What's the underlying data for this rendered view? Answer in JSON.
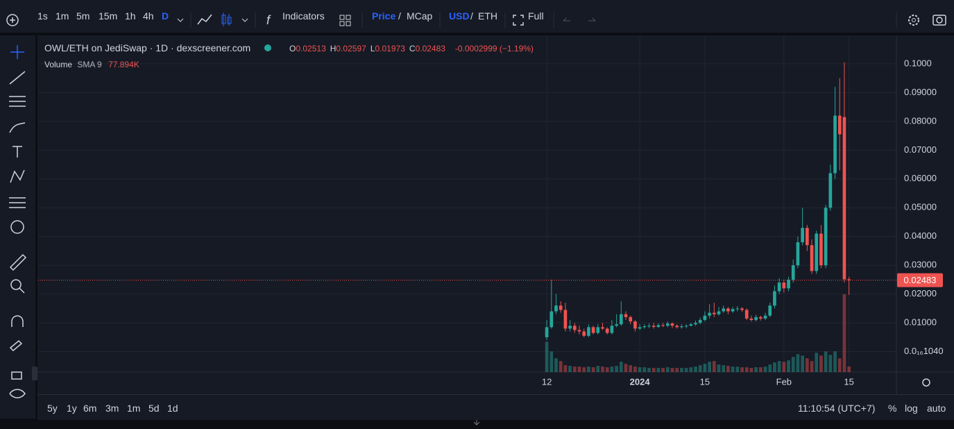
{
  "toolbar": {
    "intervals": [
      "1s",
      "1m",
      "5m",
      "15m",
      "1h",
      "4h",
      "D"
    ],
    "indicators": "Indicators",
    "price_toggle": [
      "Price",
      "/",
      "MCap"
    ],
    "currency_toggle": [
      "USD",
      "/",
      "ETH"
    ],
    "full": "Full"
  },
  "legend": {
    "title": "OWL/ETH on JediSwap · 1D · dexscreener.com",
    "ohlc": [
      {
        "label": "O",
        "value": "0.02513"
      },
      {
        "label": "H",
        "value": "0.02597"
      },
      {
        "label": "L",
        "value": "0.01973"
      },
      {
        "label": "C",
        "value": "0.02483"
      }
    ],
    "change": "-0.0002999 (−1.19%)",
    "volume": "Volume",
    "sma": "SMA 9",
    "sma_value": "77.894K"
  },
  "chart_data": {
    "type": "candlestick",
    "up_color": "#26a69a",
    "down_color": "#ef5350",
    "grid": true,
    "open": [
      0.005,
      0.0085,
      0.014,
      0.016,
      0.0145,
      0.008,
      0.009,
      0.0075,
      0.007,
      0.0055,
      0.0085,
      0.0065,
      0.0085,
      0.008,
      0.0065,
      0.009,
      0.0095,
      0.013,
      0.012,
      0.0105,
      0.008,
      0.0085,
      0.0088,
      0.009,
      0.0086,
      0.0092,
      0.009,
      0.0098,
      0.009,
      0.0085,
      0.0088,
      0.009,
      0.0095,
      0.01,
      0.011,
      0.0125,
      0.0135,
      0.013,
      0.014,
      0.015,
      0.014,
      0.0148,
      0.015,
      0.0145,
      0.0115,
      0.011,
      0.012,
      0.0115,
      0.0125,
      0.016,
      0.021,
      0.024,
      0.022,
      0.025,
      0.03,
      0.038,
      0.043,
      0.037,
      0.028,
      0.041,
      0.03,
      0.05,
      0.062,
      0.082,
      0.0815,
      0.02513
    ],
    "high": [
      0.011,
      0.025,
      0.02,
      0.0175,
      0.017,
      0.011,
      0.01,
      0.009,
      0.008,
      0.0095,
      0.009,
      0.0095,
      0.01,
      0.0085,
      0.011,
      0.013,
      0.0175,
      0.014,
      0.0125,
      0.011,
      0.0095,
      0.0095,
      0.0098,
      0.01,
      0.0098,
      0.01,
      0.0105,
      0.0102,
      0.0095,
      0.0095,
      0.0095,
      0.01,
      0.0108,
      0.0118,
      0.014,
      0.0165,
      0.017,
      0.0155,
      0.016,
      0.0155,
      0.0155,
      0.0158,
      0.0155,
      0.015,
      0.0125,
      0.0128,
      0.0125,
      0.0135,
      0.017,
      0.023,
      0.0255,
      0.025,
      0.026,
      0.032,
      0.04,
      0.05,
      0.044,
      0.039,
      0.042,
      0.044,
      0.051,
      0.065,
      0.092,
      0.095,
      0.1005,
      0.02597
    ],
    "low": [
      0.004,
      0.008,
      0.013,
      0.0135,
      0.007,
      0.007,
      0.0065,
      0.006,
      0.005,
      0.005,
      0.006,
      0.006,
      0.0075,
      0.006,
      0.006,
      0.0085,
      0.009,
      0.011,
      0.0095,
      0.007,
      0.0075,
      0.008,
      0.0082,
      0.008,
      0.0082,
      0.0085,
      0.0085,
      0.0082,
      0.008,
      0.008,
      0.0082,
      0.0088,
      0.009,
      0.0095,
      0.0105,
      0.0115,
      0.012,
      0.0125,
      0.0135,
      0.013,
      0.0135,
      0.014,
      0.0138,
      0.011,
      0.0105,
      0.0105,
      0.0108,
      0.011,
      0.012,
      0.015,
      0.02,
      0.0205,
      0.021,
      0.024,
      0.029,
      0.037,
      0.035,
      0.027,
      0.027,
      0.029,
      0.029,
      0.049,
      0.06,
      0.063,
      0.024,
      0.01973
    ],
    "close": [
      0.0085,
      0.014,
      0.016,
      0.0145,
      0.008,
      0.009,
      0.0075,
      0.007,
      0.0055,
      0.0085,
      0.0065,
      0.0085,
      0.008,
      0.0065,
      0.009,
      0.0095,
      0.013,
      0.012,
      0.0105,
      0.008,
      0.0085,
      0.0088,
      0.009,
      0.0086,
      0.0092,
      0.009,
      0.0098,
      0.009,
      0.0085,
      0.0088,
      0.009,
      0.0095,
      0.01,
      0.011,
      0.0125,
      0.0135,
      0.013,
      0.014,
      0.015,
      0.014,
      0.0148,
      0.015,
      0.0145,
      0.0115,
      0.011,
      0.012,
      0.0115,
      0.0125,
      0.016,
      0.021,
      0.024,
      0.022,
      0.025,
      0.03,
      0.038,
      0.043,
      0.037,
      0.028,
      0.041,
      0.03,
      0.05,
      0.062,
      0.082,
      0.0755,
      0.02513,
      0.02483
    ],
    "volume": [
      220,
      150,
      100,
      80,
      50,
      45,
      40,
      40,
      35,
      40,
      35,
      45,
      40,
      35,
      40,
      45,
      75,
      60,
      50,
      40,
      35,
      35,
      30,
      30,
      30,
      30,
      35,
      30,
      30,
      30,
      30,
      35,
      40,
      50,
      60,
      75,
      80,
      55,
      50,
      45,
      40,
      40,
      35,
      35,
      30,
      35,
      35,
      40,
      55,
      70,
      80,
      75,
      85,
      110,
      130,
      120,
      100,
      80,
      140,
      120,
      150,
      125,
      150,
      100,
      565,
      40
    ],
    "y2lim": [
      0,
      2400
    ],
    "xlim": [
      -109.4,
      75.2
    ],
    "xticks": [
      {
        "value": 0,
        "label": "12"
      },
      {
        "value": 20,
        "label": "2024"
      },
      {
        "value": 34,
        "label": "15"
      },
      {
        "value": 51,
        "label": "Feb"
      },
      {
        "value": 65,
        "label": "15"
      }
    ],
    "ylim": [
      -0.0071,
      0.1077
    ],
    "yticks": [
      {
        "value": 1.04e-17,
        "label": "0.0₁₆1040"
      },
      {
        "value": 0.01,
        "label": "0.01000"
      },
      {
        "value": 0.02,
        "label": "0.02000"
      },
      {
        "value": 0.03,
        "label": "0.03000"
      },
      {
        "value": 0.04,
        "label": "0.04000"
      },
      {
        "value": 0.05,
        "label": "0.05000"
      },
      {
        "value": 0.06,
        "label": "0.06000"
      },
      {
        "value": 0.07,
        "label": "0.07000"
      },
      {
        "value": 0.08,
        "label": "0.08000"
      },
      {
        "value": 0.09,
        "label": "0.09000"
      },
      {
        "value": 0.1,
        "label": "0.1000"
      }
    ],
    "last_price_label": "0.02483"
  },
  "bottom": {
    "ranges": [
      "5y",
      "1y",
      "6m",
      "3m",
      "1m",
      "5d",
      "1d"
    ],
    "time": "11:10:54 (UTC+7)",
    "percent": "%",
    "log": "log",
    "auto": "auto"
  }
}
